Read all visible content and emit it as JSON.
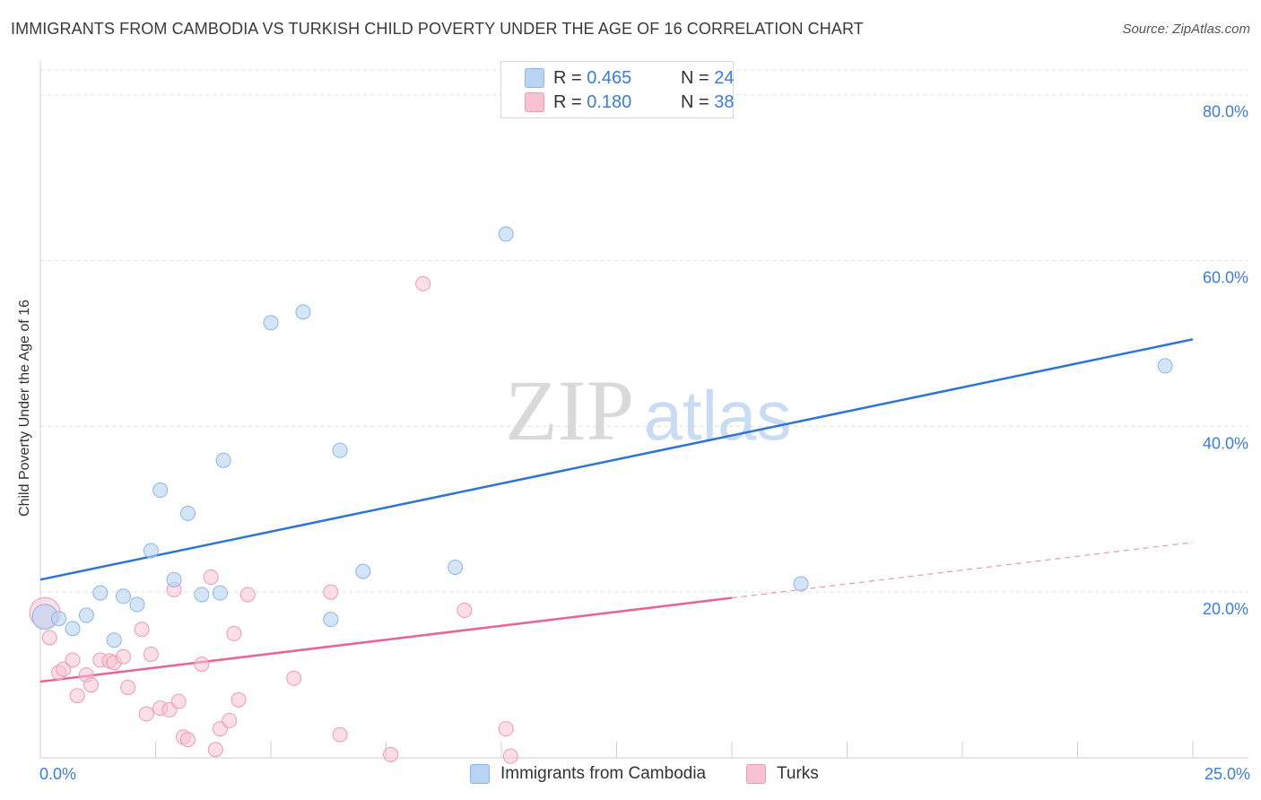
{
  "title": "IMMIGRANTS FROM CAMBODIA VS TURKISH CHILD POVERTY UNDER THE AGE OF 16 CORRELATION CHART",
  "source": "Source: ZipAtlas.com",
  "watermark": {
    "zip": "ZIP",
    "atlas": "atlas"
  },
  "legend_top": {
    "series1": {
      "r_label": "R = ",
      "r_value": "0.465",
      "n_label": "N = ",
      "n_value": "24"
    },
    "series2": {
      "r_label": "R = ",
      "r_value": "0.180",
      "n_label": "N = ",
      "n_value": "38"
    }
  },
  "legend_bottom": {
    "series1": "Immigrants from Cambodia",
    "series2": "Turks"
  },
  "colors": {
    "blue_fill": "#b9d3f3",
    "blue_stroke": "#8db4e6",
    "blue_line": "#2e74d4",
    "pink_fill": "#f7c3d2",
    "pink_stroke": "#ee9ab3",
    "pink_line": "#e5679a",
    "tick_text": "#3b7dd8",
    "grid": "#dedede"
  },
  "chart_data": {
    "type": "scatter",
    "title": "IMMIGRANTS FROM CAMBODIA VS TURKISH CHILD POVERTY UNDER THE AGE OF 16 CORRELATION CHART",
    "xlabel": "",
    "ylabel": "Child Poverty Under the Age of 16",
    "xlim": [
      0,
      25
    ],
    "ylim": [
      0,
      83
    ],
    "x_tick_labels": [
      {
        "value": 0,
        "label": "0.0%"
      },
      {
        "value": 25,
        "label": "25.0%"
      }
    ],
    "y_tick_labels": [
      {
        "value": 20,
        "label": "20.0%"
      },
      {
        "value": 40,
        "label": "40.0%"
      },
      {
        "value": 60,
        "label": "60.0%"
      },
      {
        "value": 80,
        "label": "80.0%"
      }
    ],
    "series": [
      {
        "name": "Immigrants from Cambodia",
        "r": 0.465,
        "n": 24,
        "trend": {
          "x0": 0,
          "y0": 21.5,
          "x1": 25,
          "y1": 50.5
        },
        "points": [
          {
            "x": 0.1,
            "y": 17.0,
            "big": true
          },
          {
            "x": 0.4,
            "y": 16.8
          },
          {
            "x": 0.7,
            "y": 15.6
          },
          {
            "x": 1.0,
            "y": 17.2
          },
          {
            "x": 1.3,
            "y": 19.9
          },
          {
            "x": 1.6,
            "y": 14.2
          },
          {
            "x": 1.8,
            "y": 19.5
          },
          {
            "x": 2.1,
            "y": 18.5
          },
          {
            "x": 2.4,
            "y": 25.0
          },
          {
            "x": 2.6,
            "y": 32.3
          },
          {
            "x": 2.9,
            "y": 21.5
          },
          {
            "x": 3.2,
            "y": 29.5
          },
          {
            "x": 3.5,
            "y": 19.7
          },
          {
            "x": 3.9,
            "y": 19.9
          },
          {
            "x": 3.97,
            "y": 35.9
          },
          {
            "x": 5.0,
            "y": 52.5
          },
          {
            "x": 5.7,
            "y": 53.8
          },
          {
            "x": 6.3,
            "y": 16.7
          },
          {
            "x": 6.5,
            "y": 37.1
          },
          {
            "x": 7.0,
            "y": 22.5
          },
          {
            "x": 9.0,
            "y": 23.0
          },
          {
            "x": 10.1,
            "y": 63.2
          },
          {
            "x": 16.5,
            "y": 21.0
          },
          {
            "x": 24.4,
            "y": 47.3
          }
        ]
      },
      {
        "name": "Turks",
        "r": 0.18,
        "n": 38,
        "trend_solid": {
          "x0": 0,
          "y0": 9.2,
          "x1": 15.0,
          "y1": 19.3
        },
        "trend_dashed": {
          "x0": 15.0,
          "y0": 19.3,
          "x1": 25,
          "y1": 26.0
        },
        "points": [
          {
            "x": 0.1,
            "y": 17.5,
            "big": true
          },
          {
            "x": 0.2,
            "y": 14.5
          },
          {
            "x": 0.4,
            "y": 10.3
          },
          {
            "x": 0.5,
            "y": 10.7
          },
          {
            "x": 0.7,
            "y": 11.8
          },
          {
            "x": 0.8,
            "y": 7.5
          },
          {
            "x": 1.0,
            "y": 10.0
          },
          {
            "x": 1.1,
            "y": 8.8
          },
          {
            "x": 1.3,
            "y": 11.8
          },
          {
            "x": 1.5,
            "y": 11.7
          },
          {
            "x": 1.6,
            "y": 11.5
          },
          {
            "x": 1.8,
            "y": 12.2
          },
          {
            "x": 1.9,
            "y": 8.5
          },
          {
            "x": 2.2,
            "y": 15.5
          },
          {
            "x": 2.3,
            "y": 5.3
          },
          {
            "x": 2.4,
            "y": 12.5
          },
          {
            "x": 2.6,
            "y": 6.0
          },
          {
            "x": 2.8,
            "y": 5.8
          },
          {
            "x": 2.9,
            "y": 20.3
          },
          {
            "x": 3.0,
            "y": 6.8
          },
          {
            "x": 3.1,
            "y": 2.5
          },
          {
            "x": 3.2,
            "y": 2.2
          },
          {
            "x": 3.5,
            "y": 11.3
          },
          {
            "x": 3.7,
            "y": 21.8
          },
          {
            "x": 3.8,
            "y": 1.0
          },
          {
            "x": 3.9,
            "y": 3.5
          },
          {
            "x": 4.1,
            "y": 4.5
          },
          {
            "x": 4.2,
            "y": 15.0
          },
          {
            "x": 4.3,
            "y": 7.0
          },
          {
            "x": 4.5,
            "y": 19.7
          },
          {
            "x": 5.5,
            "y": 9.6
          },
          {
            "x": 6.3,
            "y": 20.0
          },
          {
            "x": 6.5,
            "y": 2.8
          },
          {
            "x": 7.6,
            "y": 0.4
          },
          {
            "x": 8.3,
            "y": 57.2
          },
          {
            "x": 9.2,
            "y": 17.8
          },
          {
            "x": 10.1,
            "y": 3.5
          },
          {
            "x": 10.2,
            "y": 0.2
          }
        ]
      }
    ]
  }
}
